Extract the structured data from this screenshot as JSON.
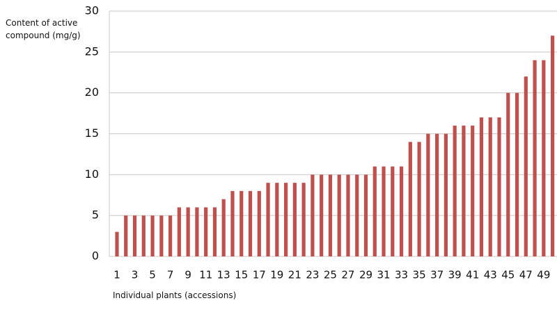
{
  "chart_data": {
    "type": "bar",
    "y_label": "Content of active compound (mg/g)",
    "x_label": "Individual plants (accessions)",
    "categories": [
      "1",
      null,
      "3",
      null,
      "5",
      null,
      "7",
      null,
      "9",
      null,
      "11",
      null,
      "13",
      null,
      "15",
      null,
      "17",
      null,
      "19",
      null,
      "21",
      null,
      "23",
      null,
      "25",
      null,
      "27",
      null,
      "29",
      null,
      "31",
      null,
      "33",
      null,
      "35",
      null,
      "37",
      null,
      "39",
      null,
      "41",
      null,
      "43",
      null,
      "45",
      null,
      "47",
      null,
      "49",
      null
    ],
    "values": [
      3,
      5,
      5,
      5,
      5,
      5,
      5,
      6,
      6,
      6,
      6,
      6,
      7,
      8,
      8,
      8,
      8,
      9,
      9,
      9,
      9,
      9,
      10,
      10,
      10,
      10,
      10,
      10,
      10,
      11,
      11,
      11,
      11,
      14,
      14,
      15,
      15,
      15,
      16,
      16,
      16,
      17,
      17,
      17,
      20,
      20,
      22,
      24,
      24,
      27
    ],
    "color": "#c0504d",
    "ylim": [
      0,
      30
    ],
    "yticks": [
      0,
      5,
      10,
      15,
      20,
      25,
      30
    ],
    "grid": true
  }
}
